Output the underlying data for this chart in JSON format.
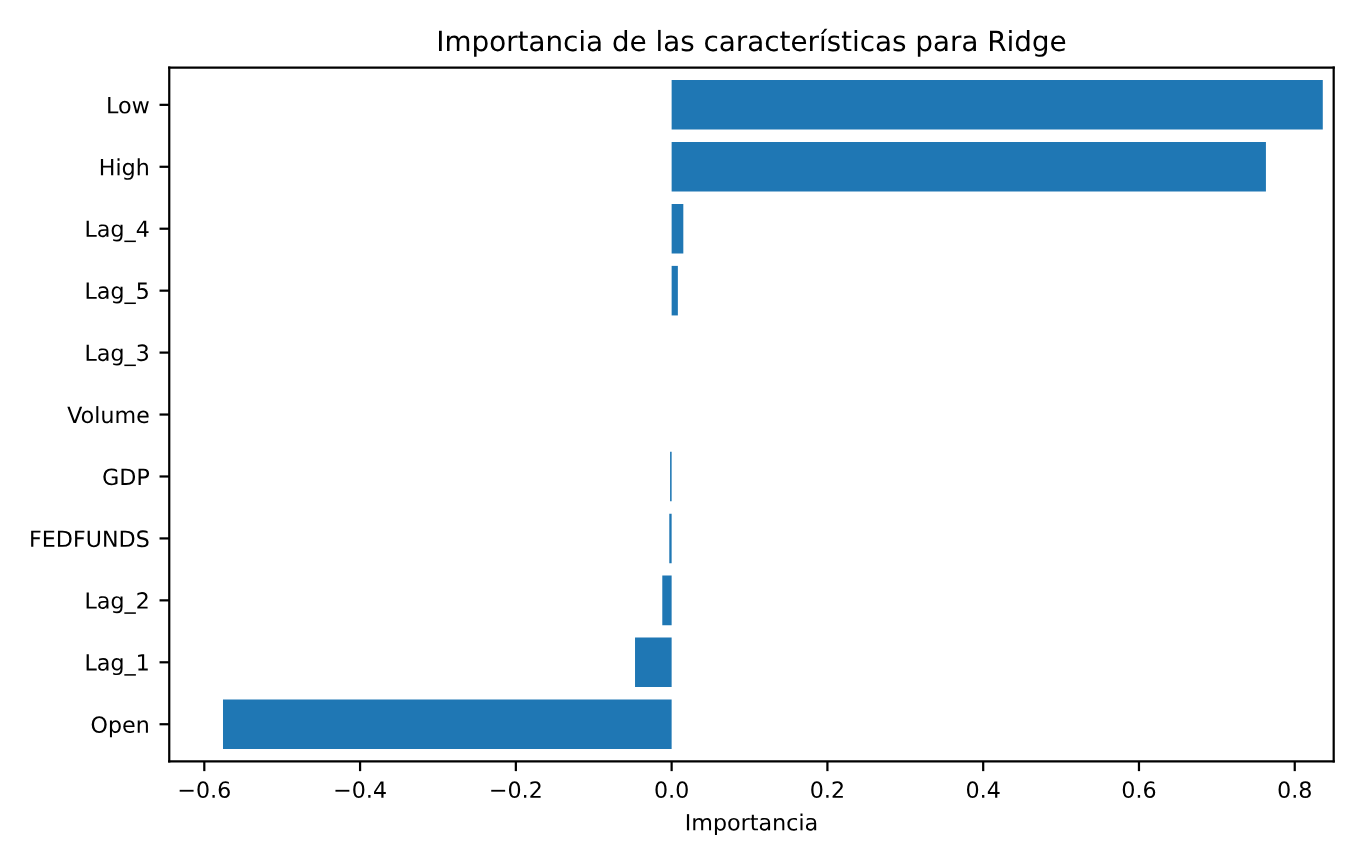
{
  "chart_data": {
    "type": "bar",
    "orientation": "horizontal",
    "title": "Importancia de las características para Ridge",
    "xlabel": "Importancia",
    "categories": [
      "Low",
      "High",
      "Lag_4",
      "Lag_5",
      "Lag_3",
      "Volume",
      "GDP",
      "FEDFUNDS",
      "Lag_2",
      "Lag_1",
      "Open"
    ],
    "values": [
      0.836,
      0.763,
      0.015,
      0.008,
      0.0,
      0.0,
      -0.002,
      -0.003,
      -0.012,
      -0.047,
      -0.576
    ],
    "color": "#1f77b4",
    "xlim": [
      -0.645,
      0.85
    ],
    "xticks": [
      {
        "value": -0.6,
        "label": "−0.6"
      },
      {
        "value": -0.4,
        "label": "−0.4"
      },
      {
        "value": -0.2,
        "label": "−0.2"
      },
      {
        "value": 0,
        "label": "0.0"
      },
      {
        "value": 0.2,
        "label": "0.2"
      },
      {
        "value": 0.4,
        "label": "0.4"
      },
      {
        "value": 0.6,
        "label": "0.6"
      },
      {
        "value": 0.8,
        "label": "0.8"
      }
    ],
    "grid": false
  }
}
